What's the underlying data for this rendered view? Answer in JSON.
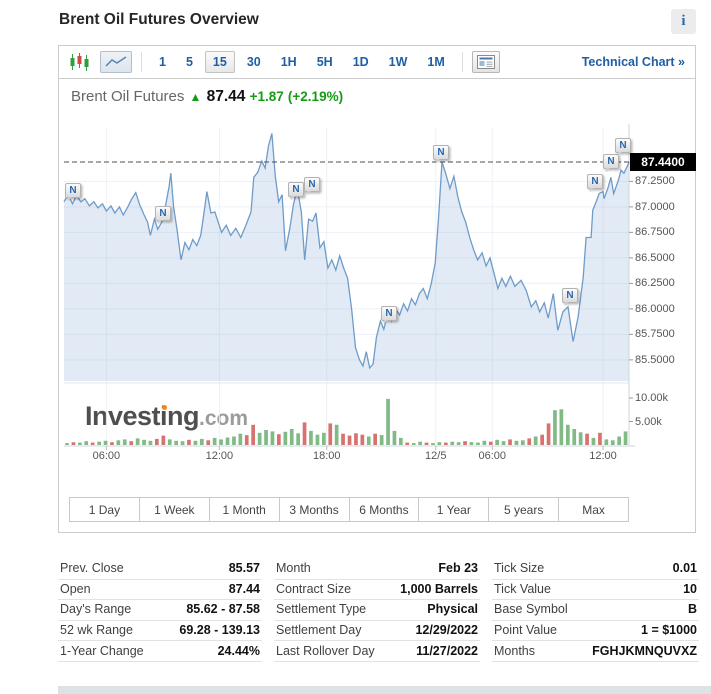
{
  "header": {
    "title": "Brent Oil Futures Overview",
    "info_icon": "i"
  },
  "toolbar": {
    "icons": [
      "candlestick-chart",
      "line-chart",
      "news-panel"
    ],
    "timeframes": [
      "1",
      "5",
      "15",
      "30",
      "1H",
      "5H",
      "1D",
      "1W",
      "1M"
    ],
    "selected_timeframe": "15",
    "technical_chart_label": "Technical Chart »"
  },
  "chart_header": {
    "name": "Brent Oil Futures",
    "arrow": "▲",
    "price": "87.44",
    "change": "+1.87",
    "change_pct": "(+2.19%)"
  },
  "watermark": {
    "text": "Investing",
    "suffix": ".com"
  },
  "chart_data": {
    "type": "area",
    "title": "Brent Oil Futures 15-minute price with volume",
    "current_price": 87.44,
    "current_price_label": "87.4400",
    "dashed_line_price": 87.44,
    "news_marker_label": "N",
    "y_ticks": [
      {
        "label": "87.2500",
        "price": 87.25
      },
      {
        "label": "87.0000",
        "price": 87.0
      },
      {
        "label": "86.7500",
        "price": 86.75
      },
      {
        "label": "86.5000",
        "price": 86.5
      },
      {
        "label": "86.2500",
        "price": 86.25
      },
      {
        "label": "86.0000",
        "price": 86.0
      },
      {
        "label": "85.7500",
        "price": 85.75
      },
      {
        "label": "85.5000",
        "price": 85.5
      }
    ],
    "x_ticks": [
      {
        "label": "06:00",
        "pct": 7.5
      },
      {
        "label": "12:00",
        "pct": 27.5
      },
      {
        "label": "18:00",
        "pct": 46.5
      },
      {
        "label": "12/5",
        "pct": 65.8
      },
      {
        "label": "06:00",
        "pct": 75.8
      },
      {
        "label": "12:00",
        "pct": 95.4
      }
    ],
    "volume_axis": {
      "ticks": [
        {
          "label": "10.00k",
          "v": 10
        },
        {
          "label": "5.00k",
          "v": 5
        }
      ]
    },
    "price_series": [
      [
        0,
        87.05
      ],
      [
        0.7,
        87.12
      ],
      [
        1.5,
        87.03
      ],
      [
        2.2,
        87.11
      ],
      [
        3,
        87.05
      ],
      [
        3.7,
        87.08
      ],
      [
        4.5,
        87.01
      ],
      [
        5.3,
        87.05
      ],
      [
        6,
        86.99
      ],
      [
        6.8,
        87.03
      ],
      [
        7.5,
        86.96
      ],
      [
        8.3,
        87.01
      ],
      [
        9,
        86.94
      ],
      [
        9.8,
        87.0
      ],
      [
        10.5,
        86.92
      ],
      [
        11.3,
        87.0
      ],
      [
        12,
        87.08
      ],
      [
        12.7,
        87.14
      ],
      [
        13.4,
        87.02
      ],
      [
        14.1,
        86.93
      ],
      [
        14.8,
        86.85
      ],
      [
        15.3,
        86.72
      ],
      [
        16,
        86.88
      ],
      [
        16.6,
        86.78
      ],
      [
        17.3,
        86.85
      ],
      [
        18,
        87.02
      ],
      [
        18.6,
        87.2
      ],
      [
        18.9,
        87.33
      ],
      [
        19.4,
        87.0
      ],
      [
        20,
        86.78
      ],
      [
        20.7,
        86.48
      ],
      [
        21.4,
        86.65
      ],
      [
        22.1,
        86.58
      ],
      [
        22.8,
        86.68
      ],
      [
        23.5,
        86.62
      ],
      [
        24.2,
        86.72
      ],
      [
        24.8,
        86.95
      ],
      [
        25.3,
        87.15
      ],
      [
        26,
        86.94
      ],
      [
        26.7,
        86.95
      ],
      [
        27.3,
        86.85
      ],
      [
        27.9,
        86.75
      ],
      [
        28.7,
        86.82
      ],
      [
        29.5,
        86.72
      ],
      [
        30.4,
        86.79
      ],
      [
        31.3,
        86.7
      ],
      [
        32.2,
        86.82
      ],
      [
        33.1,
        86.95
      ],
      [
        33.6,
        87.29
      ],
      [
        34.3,
        87.34
      ],
      [
        35,
        87.45
      ],
      [
        35.6,
        87.38
      ],
      [
        36.2,
        87.6
      ],
      [
        36.8,
        87.72
      ],
      [
        37.4,
        87.3
      ],
      [
        38,
        87.05
      ],
      [
        38.6,
        87.12
      ],
      [
        39.2,
        86.57
      ],
      [
        40,
        86.8
      ],
      [
        40.6,
        87.02
      ],
      [
        41.3,
        87.18
      ],
      [
        42,
        86.95
      ],
      [
        42.6,
        86.48
      ],
      [
        43.3,
        86.88
      ],
      [
        44,
        86.86
      ],
      [
        44.6,
        86.94
      ],
      [
        45.3,
        86.6
      ],
      [
        46,
        86.66
      ],
      [
        46.7,
        86.4
      ],
      [
        47.4,
        86.48
      ],
      [
        48.1,
        86.38
      ],
      [
        48.8,
        86.52
      ],
      [
        49.5,
        86.4
      ],
      [
        50.2,
        86.3
      ],
      [
        50.9,
        86.0
      ],
      [
        51.6,
        85.62
      ],
      [
        52.3,
        85.5
      ],
      [
        52.9,
        85.44
      ],
      [
        53.5,
        85.58
      ],
      [
        54.1,
        85.42
      ],
      [
        54.7,
        85.46
      ],
      [
        55.3,
        85.72
      ],
      [
        56,
        85.88
      ],
      [
        56.6,
        85.8
      ],
      [
        57.3,
        85.95
      ],
      [
        58,
        85.88
      ],
      [
        58.7,
        86.0
      ],
      [
        59.4,
        85.94
      ],
      [
        60.1,
        86.05
      ],
      [
        60.8,
        85.98
      ],
      [
        61.5,
        86.1
      ],
      [
        62.2,
        86.04
      ],
      [
        62.9,
        86.15
      ],
      [
        63.6,
        86.2
      ],
      [
        64.3,
        86.1
      ],
      [
        65,
        86.25
      ],
      [
        65.7,
        86.45
      ],
      [
        66.3,
        86.9
      ],
      [
        66.9,
        87.44
      ],
      [
        67.6,
        87.32
      ],
      [
        68.3,
        87.18
      ],
      [
        69,
        87.3
      ],
      [
        69.7,
        87.1
      ],
      [
        70.4,
        86.95
      ],
      [
        71.1,
        86.85
      ],
      [
        71.8,
        86.7
      ],
      [
        72.5,
        86.58
      ],
      [
        73.2,
        86.48
      ],
      [
        74,
        86.55
      ],
      [
        74.7,
        86.42
      ],
      [
        75.4,
        86.5
      ],
      [
        76.1,
        86.35
      ],
      [
        76.8,
        86.2
      ],
      [
        77.5,
        86.3
      ],
      [
        78.2,
        86.22
      ],
      [
        79,
        86.32
      ],
      [
        79.8,
        86.22
      ],
      [
        80.9,
        86.28
      ],
      [
        81.8,
        86.18
      ],
      [
        82.7,
        86.02
      ],
      [
        83.5,
        86.08
      ],
      [
        84.2,
        85.97
      ],
      [
        85,
        86.06
      ],
      [
        85.7,
        85.91
      ],
      [
        86.6,
        86.15
      ],
      [
        87.4,
        85.79
      ],
      [
        88.3,
        85.97
      ],
      [
        89.2,
        86.02
      ],
      [
        90.1,
        85.68
      ],
      [
        91,
        85.92
      ],
      [
        91.9,
        86.31
      ],
      [
        92.4,
        86.7
      ],
      [
        93.3,
        86.7
      ],
      [
        93.6,
        86.97
      ],
      [
        94.2,
        87.05
      ],
      [
        94.7,
        87.13
      ],
      [
        95.4,
        87.15
      ],
      [
        95.6,
        87.08
      ],
      [
        96.3,
        87.19
      ],
      [
        96.8,
        87.29
      ],
      [
        97.3,
        87.13
      ],
      [
        98.1,
        87.26
      ],
      [
        98.6,
        87.36
      ],
      [
        99.1,
        87.33
      ],
      [
        99.8,
        87.41
      ],
      [
        100,
        87.44
      ]
    ],
    "news_markers": [
      {
        "pct": 1.6,
        "price": 87.16
      },
      {
        "pct": 17.5,
        "price": 86.93
      },
      {
        "pct": 41.1,
        "price": 87.17
      },
      {
        "pct": 43.9,
        "price": 87.21
      },
      {
        "pct": 57.5,
        "price": 85.95
      },
      {
        "pct": 66.7,
        "price": 87.53
      },
      {
        "pct": 89.5,
        "price": 86.13
      },
      {
        "pct": 94.0,
        "price": 87.24
      },
      {
        "pct": 96.9,
        "price": 87.44
      },
      {
        "pct": 99.0,
        "price": 87.6
      }
    ],
    "volume_bars": [
      [
        0.4,
        "g"
      ],
      [
        0.6,
        "r"
      ],
      [
        0.5,
        "g"
      ],
      [
        0.8,
        "g"
      ],
      [
        0.5,
        "r"
      ],
      [
        0.7,
        "g"
      ],
      [
        0.9,
        "g"
      ],
      [
        0.6,
        "r"
      ],
      [
        1.0,
        "g"
      ],
      [
        1.2,
        "g"
      ],
      [
        0.8,
        "r"
      ],
      [
        1.4,
        "g"
      ],
      [
        1.1,
        "g"
      ],
      [
        0.9,
        "g"
      ],
      [
        1.3,
        "r"
      ],
      [
        2.0,
        "r"
      ],
      [
        1.2,
        "g"
      ],
      [
        0.9,
        "g"
      ],
      [
        0.8,
        "g"
      ],
      [
        1.1,
        "r"
      ],
      [
        0.9,
        "g"
      ],
      [
        1.3,
        "g"
      ],
      [
        1.0,
        "r"
      ],
      [
        1.5,
        "g"
      ],
      [
        1.2,
        "g"
      ],
      [
        1.6,
        "g"
      ],
      [
        1.8,
        "g"
      ],
      [
        2.4,
        "g"
      ],
      [
        2.1,
        "r"
      ],
      [
        4.3,
        "r"
      ],
      [
        2.6,
        "g"
      ],
      [
        3.2,
        "g"
      ],
      [
        2.9,
        "g"
      ],
      [
        2.3,
        "r"
      ],
      [
        2.8,
        "g"
      ],
      [
        3.4,
        "g"
      ],
      [
        2.5,
        "g"
      ],
      [
        4.8,
        "r"
      ],
      [
        3.0,
        "g"
      ],
      [
        2.2,
        "g"
      ],
      [
        2.6,
        "g"
      ],
      [
        4.6,
        "r"
      ],
      [
        4.3,
        "g"
      ],
      [
        2.4,
        "r"
      ],
      [
        2.0,
        "r"
      ],
      [
        2.5,
        "r"
      ],
      [
        2.2,
        "r"
      ],
      [
        1.8,
        "g"
      ],
      [
        2.4,
        "r"
      ],
      [
        2.1,
        "g"
      ],
      [
        9.8,
        "g"
      ],
      [
        3.0,
        "g"
      ],
      [
        1.5,
        "g"
      ],
      [
        0.5,
        "r"
      ],
      [
        0.4,
        "g"
      ],
      [
        0.7,
        "g"
      ],
      [
        0.5,
        "r"
      ],
      [
        0.4,
        "g"
      ],
      [
        0.6,
        "g"
      ],
      [
        0.5,
        "r"
      ],
      [
        0.7,
        "g"
      ],
      [
        0.6,
        "g"
      ],
      [
        0.8,
        "r"
      ],
      [
        0.6,
        "g"
      ],
      [
        0.5,
        "g"
      ],
      [
        0.9,
        "g"
      ],
      [
        0.7,
        "r"
      ],
      [
        1.1,
        "g"
      ],
      [
        0.8,
        "g"
      ],
      [
        1.2,
        "r"
      ],
      [
        0.9,
        "g"
      ],
      [
        1.0,
        "g"
      ],
      [
        1.4,
        "r"
      ],
      [
        1.8,
        "g"
      ],
      [
        2.2,
        "r"
      ],
      [
        4.6,
        "r"
      ],
      [
        7.4,
        "g"
      ],
      [
        7.6,
        "g"
      ],
      [
        4.3,
        "g"
      ],
      [
        3.4,
        "g"
      ],
      [
        2.7,
        "g"
      ],
      [
        2.4,
        "r"
      ],
      [
        1.5,
        "g"
      ],
      [
        2.6,
        "r"
      ],
      [
        1.2,
        "g"
      ],
      [
        1.0,
        "g"
      ],
      [
        1.8,
        "g"
      ],
      [
        2.9,
        "g"
      ]
    ],
    "colors": {
      "line": "#6f9bc9",
      "fill": "rgba(125,165,210,0.22)",
      "vol_up": "#82ba86",
      "vol_down": "#d7736e",
      "dashed": "#4c4c4c",
      "grid": "#edf1f5"
    }
  },
  "range_buttons": [
    "1 Day",
    "1 Week",
    "1 Month",
    "3 Months",
    "6 Months",
    "1 Year",
    "5 years",
    "Max"
  ],
  "quote_table": {
    "columns": [
      [
        {
          "label": "Prev. Close",
          "value": "85.57"
        },
        {
          "label": "Open",
          "value": "87.44"
        },
        {
          "label": "Day's Range",
          "value": "85.62 - 87.58"
        },
        {
          "label": "52 wk Range",
          "value": "69.28 - 139.13"
        },
        {
          "label": "1-Year Change",
          "value": "24.44%"
        }
      ],
      [
        {
          "label": "Month",
          "value": "Feb 23"
        },
        {
          "label": "Contract Size",
          "value": "1,000 Barrels"
        },
        {
          "label": "Settlement Type",
          "value": "Physical"
        },
        {
          "label": "Settlement Day",
          "value": "12/29/2022"
        },
        {
          "label": "Last Rollover Day",
          "value": "11/27/2022"
        }
      ],
      [
        {
          "label": "Tick Size",
          "value": "0.01"
        },
        {
          "label": "Tick Value",
          "value": "10"
        },
        {
          "label": "Base Symbol",
          "value": "B"
        },
        {
          "label": "Point Value",
          "value": "1 = $1000"
        },
        {
          "label": "Months",
          "value": "FGHJKMNQUVXZ"
        }
      ]
    ]
  }
}
